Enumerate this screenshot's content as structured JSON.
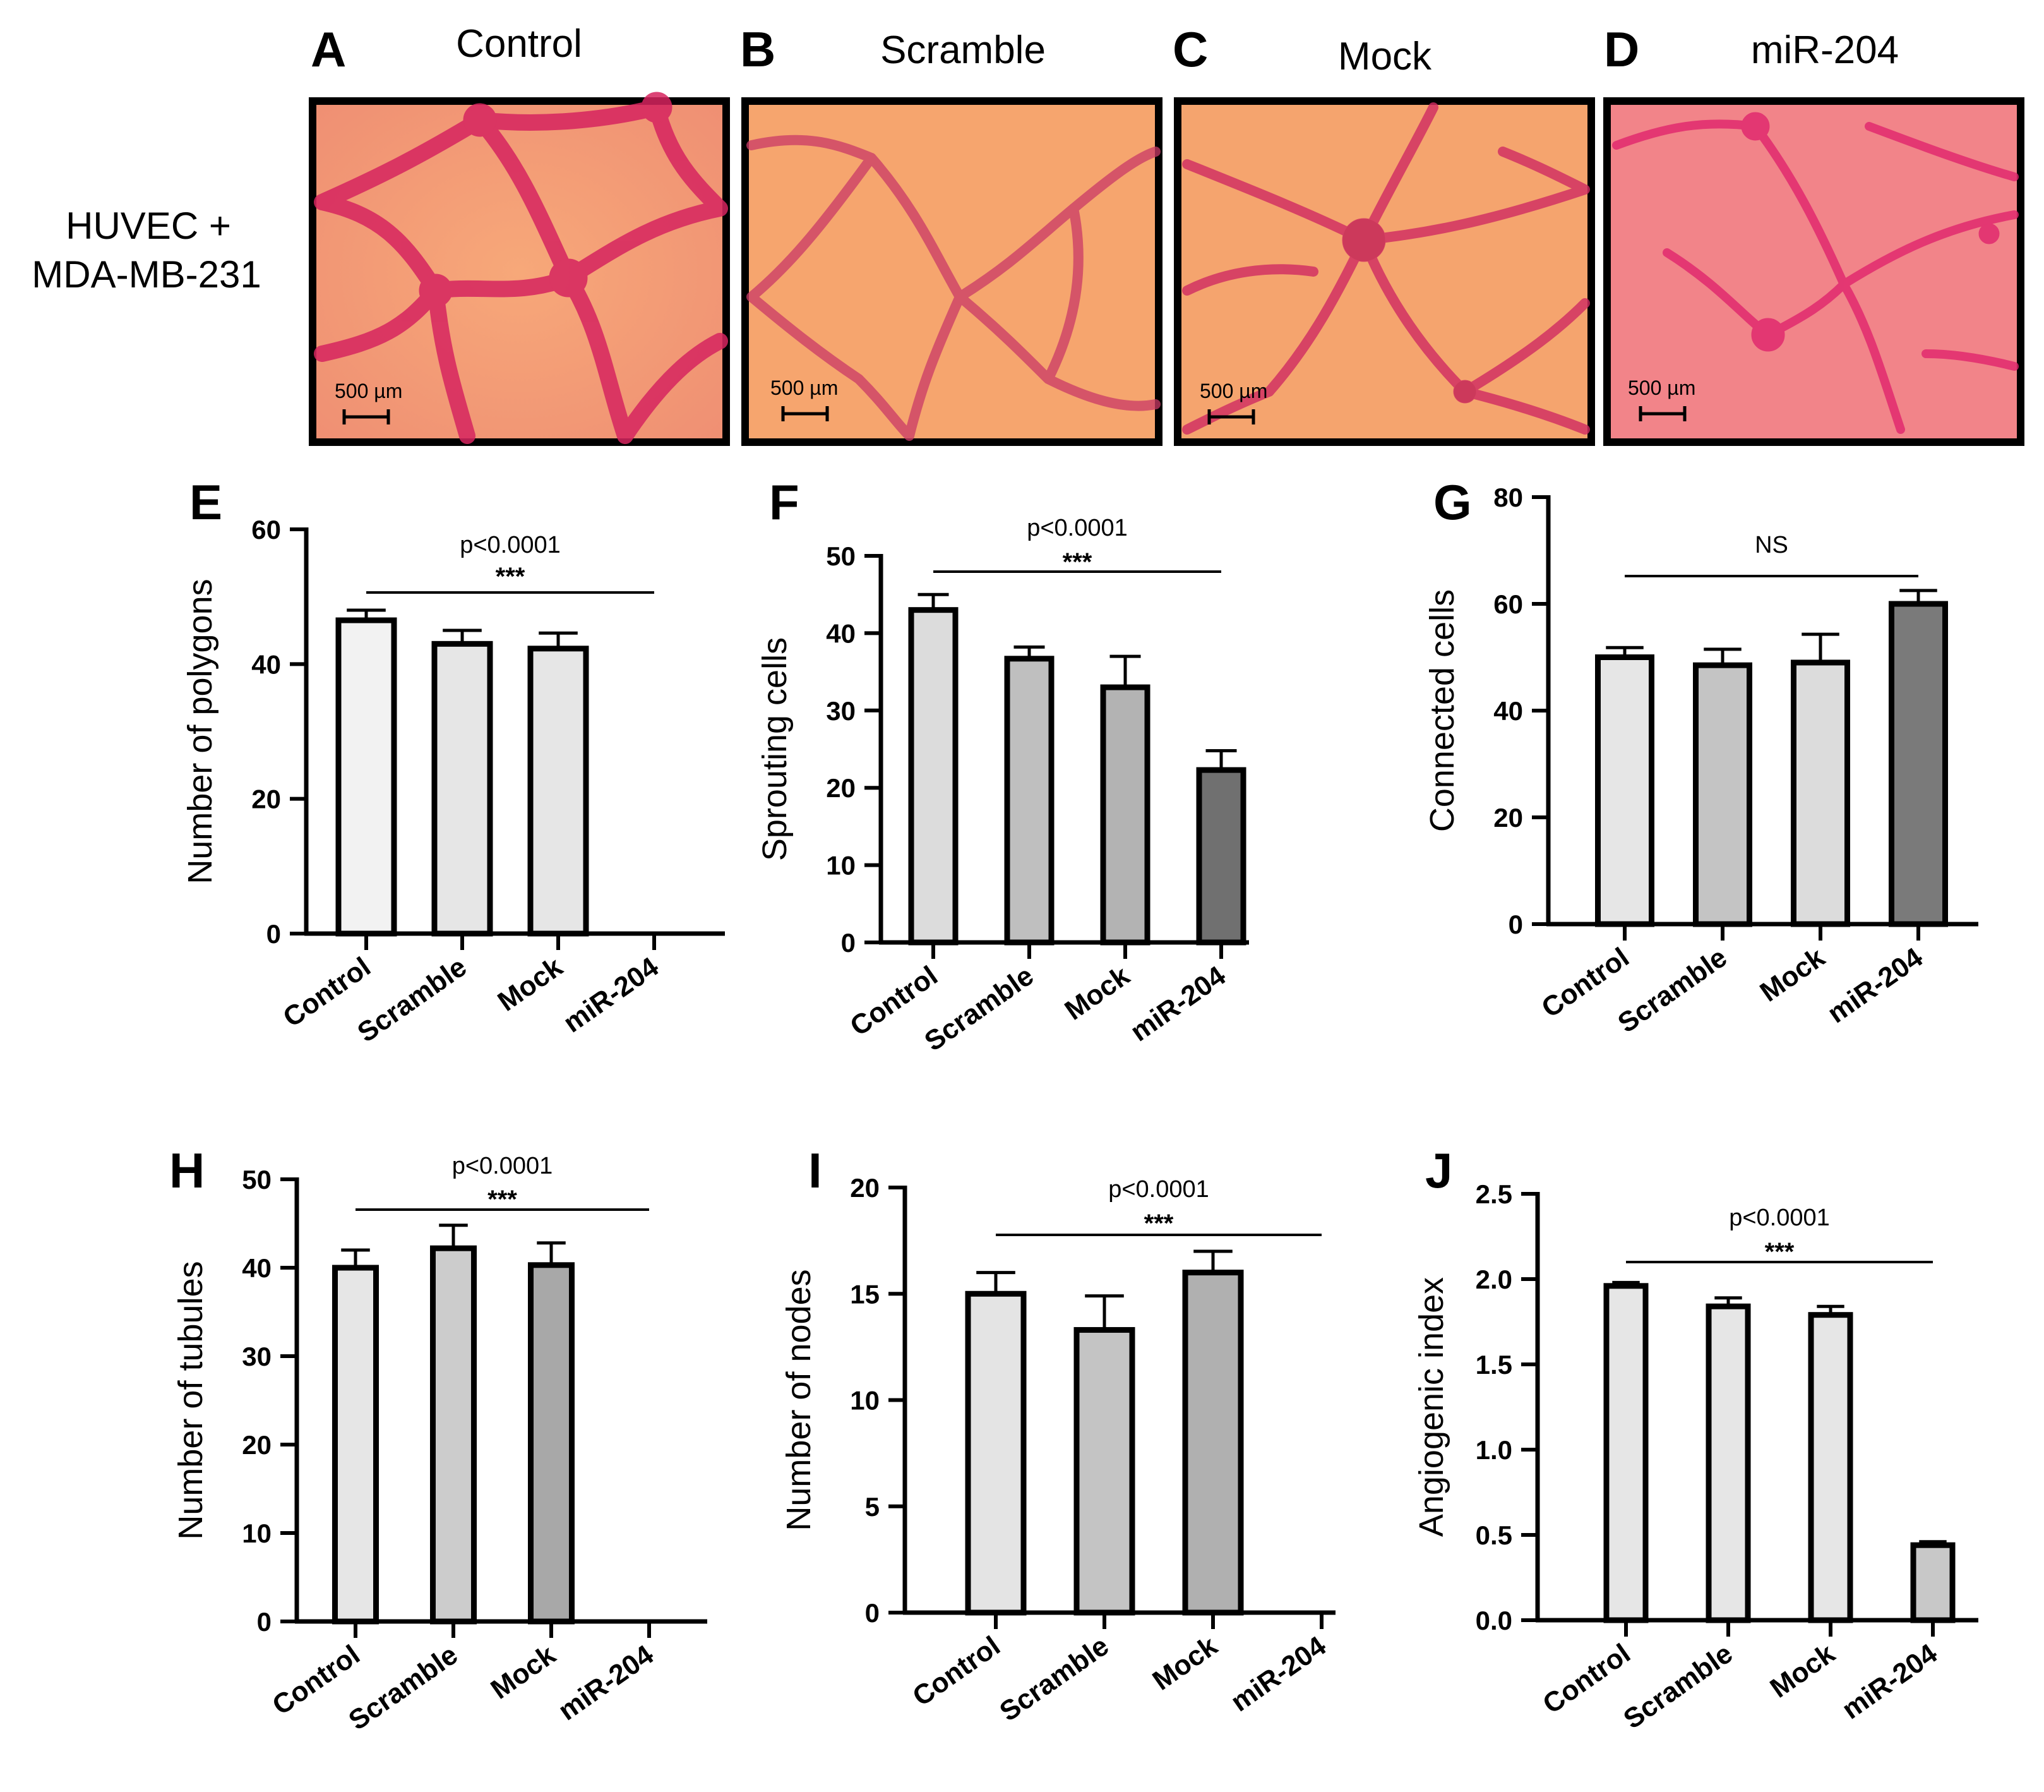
{
  "row_label": [
    "HUVEC +",
    "MDA-MB-231"
  ],
  "micrographs": [
    {
      "letter": "A",
      "title": "Control",
      "scale_bar": "500 µm"
    },
    {
      "letter": "B",
      "title": "Scramble",
      "scale_bar": "500 µm"
    },
    {
      "letter": "C",
      "title": "Mock",
      "scale_bar": "500 µm"
    },
    {
      "letter": "D",
      "title": "miR-204",
      "scale_bar": "500 µm"
    }
  ],
  "colors": {
    "image_bg": "#f2a07a",
    "image_bg2": "#f6a56e",
    "network": "#d6245f",
    "frame": "#000000",
    "bar_outline": "#000000"
  },
  "chart_data": [
    {
      "letter": "E",
      "type": "bar",
      "categories": [
        "Control",
        "Scramble",
        "Mock",
        "miR-204"
      ],
      "values": [
        46.5,
        43,
        42.3,
        0
      ],
      "errors": [
        1.5,
        2,
        2.3,
        0
      ],
      "fills": [
        "#f2f2f2",
        "#e6e6e6",
        "#e6e6e6",
        "#e6e6e6"
      ],
      "ylabel": "Number of polygons",
      "ylim": [
        0,
        60
      ],
      "yticks": [
        0,
        20,
        40,
        60
      ],
      "ytick_labels": [
        "0",
        "20",
        "40",
        "60"
      ],
      "p_value": "p<0.0001",
      "significance": "***",
      "bracket": [
        0,
        3
      ]
    },
    {
      "letter": "F",
      "type": "bar",
      "categories": [
        "Control",
        "Scramble",
        "Mock",
        "miR-204"
      ],
      "values": [
        43,
        36.7,
        33,
        22.3
      ],
      "errors": [
        2,
        1.5,
        4,
        2.5
      ],
      "fills": [
        "#dcdcdc",
        "#bfbfbf",
        "#b3b3b3",
        "#707070"
      ],
      "ylabel": "Sprouting cells",
      "ylim": [
        0,
        50
      ],
      "yticks": [
        0,
        10,
        20,
        30,
        40,
        50
      ],
      "ytick_labels": [
        "0",
        "10",
        "20",
        "30",
        "40",
        "50"
      ],
      "p_value": "p<0.0001",
      "significance": "***",
      "bracket": [
        0,
        3
      ]
    },
    {
      "letter": "G",
      "type": "bar",
      "categories": [
        "Control",
        "Scramble",
        "Mock",
        "miR-204"
      ],
      "values": [
        50,
        48.5,
        49,
        60
      ],
      "errors": [
        1.8,
        3,
        5.3,
        2.5
      ],
      "fills": [
        "#e6e6e6",
        "#c4c4c4",
        "#dcdcdc",
        "#7a7a7a"
      ],
      "ylabel": "Connected cells",
      "ylim": [
        0,
        80
      ],
      "yticks": [
        0,
        20,
        40,
        60,
        80
      ],
      "ytick_labels": [
        "0",
        "20",
        "40",
        "60",
        "80"
      ],
      "p_value": "",
      "significance": "NS",
      "bracket": [
        0,
        3
      ]
    },
    {
      "letter": "H",
      "type": "bar",
      "categories": [
        "Control",
        "Scramble",
        "Mock",
        "miR-204"
      ],
      "values": [
        40,
        42.2,
        40.3,
        0
      ],
      "errors": [
        2,
        2.6,
        2.5,
        0
      ],
      "fills": [
        "#e6e6e6",
        "#cccccc",
        "#a8a8a8",
        "#e6e6e6"
      ],
      "ylabel": "Number of tubules",
      "ylim": [
        0,
        50
      ],
      "yticks": [
        0,
        10,
        20,
        30,
        40,
        50
      ],
      "ytick_labels": [
        "0",
        "10",
        "20",
        "30",
        "40",
        "50"
      ],
      "p_value": "p<0.0001",
      "significance": "***",
      "bracket": [
        0,
        3
      ]
    },
    {
      "letter": "I",
      "type": "bar",
      "categories": [
        "Control",
        "Scramble",
        "Mock",
        "miR-204"
      ],
      "values": [
        15,
        13.3,
        16,
        0
      ],
      "errors": [
        1,
        1.6,
        1,
        0
      ],
      "fills": [
        "#e4e4e4",
        "#c4c4c4",
        "#b0b0b0",
        "#e6e6e6"
      ],
      "ylabel": "Number of nodes",
      "ylim": [
        0,
        20
      ],
      "yticks": [
        0,
        5,
        10,
        15,
        20
      ],
      "ytick_labels": [
        "0",
        "5",
        "10",
        "15",
        "20"
      ],
      "p_value": "p<0.0001",
      "significance": "***",
      "bracket": [
        0,
        3
      ]
    },
    {
      "letter": "J",
      "type": "bar",
      "categories": [
        "Control",
        "Scramble",
        "Mock",
        "miR-204"
      ],
      "values": [
        1.96,
        1.84,
        1.79,
        0.44
      ],
      "errors": [
        0.02,
        0.05,
        0.05,
        0.02
      ],
      "fills": [
        "#e6e6e6",
        "#e6e6e6",
        "#e6e6e6",
        "#c8c8c8"
      ],
      "ylabel": "Angiogenic index",
      "ylim": [
        0,
        2.5
      ],
      "yticks": [
        0,
        0.5,
        1.0,
        1.5,
        2.0,
        2.5
      ],
      "ytick_labels": [
        "0.0",
        "0.5",
        "1.0",
        "1.5",
        "2.0",
        "2.5"
      ],
      "p_value": "p<0.0001",
      "significance": "***",
      "bracket": [
        0,
        3
      ]
    }
  ]
}
